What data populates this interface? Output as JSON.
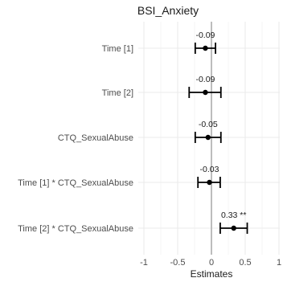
{
  "chart_data": {
    "type": "forest",
    "title": "BSI_Anxiety",
    "xlabel": "Estimates",
    "xlim": [
      -1.05,
      1.05
    ],
    "xticks": [
      -1,
      -0.5,
      0,
      0.5,
      1
    ],
    "xtick_labels": [
      "-1",
      "-0.5",
      "0",
      "0.5",
      "1"
    ],
    "reference_line": 0,
    "grid": true,
    "terms": [
      {
        "label": "Time [1]",
        "estimate": -0.09,
        "ci_low": -0.24,
        "ci_high": 0.06,
        "data_label": "-0.09"
      },
      {
        "label": "Time [2]",
        "estimate": -0.09,
        "ci_low": -0.33,
        "ci_high": 0.14,
        "data_label": "-0.09"
      },
      {
        "label": "CTQ_SexualAbuse",
        "estimate": -0.05,
        "ci_low": -0.24,
        "ci_high": 0.14,
        "data_label": "-0.05"
      },
      {
        "label": "Time [1] * CTQ_SexualAbuse",
        "estimate": -0.03,
        "ci_low": -0.2,
        "ci_high": 0.13,
        "data_label": "-0.03"
      },
      {
        "label": "Time [2] * CTQ_SexualAbuse",
        "estimate": 0.33,
        "ci_low": 0.13,
        "ci_high": 0.53,
        "data_label": "0.33 **"
      }
    ]
  }
}
